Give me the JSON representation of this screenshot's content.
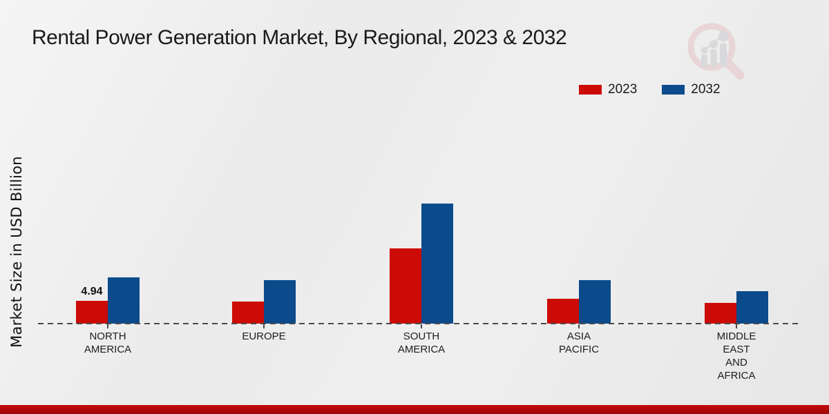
{
  "title": "Rental Power Generation Market, By Regional, 2023 & 2032",
  "y_axis_label": "Market Size in USD Billion",
  "legend": [
    {
      "label": "2023",
      "color": "#cc0b06"
    },
    {
      "label": "2032",
      "color": "#0b4a8b"
    }
  ],
  "colors": {
    "series_2023": "#cc0b06",
    "series_2032": "#0b4a8b",
    "axis_dash": "#4a4a4a",
    "bottom_band": "#b20909",
    "background": "#ececec",
    "text": "#1a1a1a"
  },
  "chart_data": {
    "type": "bar",
    "title": "Rental Power Generation Market, By Regional, 2023 & 2032",
    "ylabel": "Market Size in USD Billion",
    "xlabel": "",
    "unit": "USD Billion",
    "categories": [
      "NORTH AMERICA",
      "EUROPE",
      "SOUTH AMERICA",
      "ASIA PACIFIC",
      "MIDDLE EAST AND AFRICA"
    ],
    "category_lines": [
      [
        "NORTH",
        "AMERICA"
      ],
      [
        "EUROPE"
      ],
      [
        "SOUTH",
        "AMERICA"
      ],
      [
        "ASIA",
        "PACIFIC"
      ],
      [
        "MIDDLE",
        "EAST",
        "AND",
        "AFRICA"
      ]
    ],
    "series": [
      {
        "name": "2023",
        "color": "#cc0b06",
        "values": [
          4.94,
          4.7,
          16.1,
          5.3,
          4.4
        ]
      },
      {
        "name": "2032",
        "color": "#0b4a8b",
        "values": [
          9.9,
          9.3,
          25.7,
          9.3,
          7.0
        ]
      }
    ],
    "data_labels": [
      {
        "series_index": 0,
        "category_index": 0,
        "text": "4.94"
      }
    ],
    "ylim": [
      0,
      26
    ],
    "grid": "off",
    "baseline_style": "dashed",
    "legend_position": "top-right"
  }
}
